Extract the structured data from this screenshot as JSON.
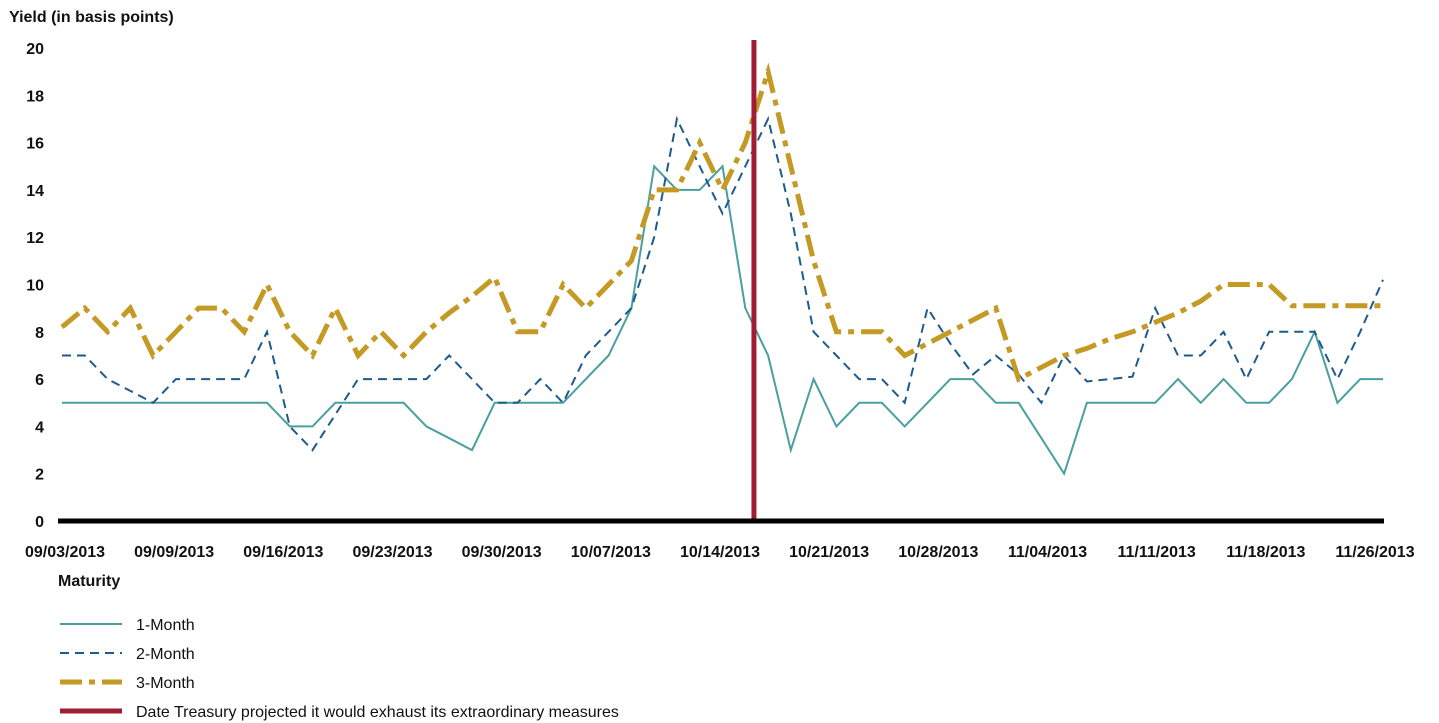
{
  "chart_data": {
    "type": "line",
    "ylabel": "Yield (in basis points)",
    "ylim": [
      0,
      20
    ],
    "yticks": [
      0,
      2,
      4,
      6,
      8,
      10,
      12,
      14,
      16,
      18,
      20
    ],
    "x_start": "09/03/2013",
    "x_tick_labels": [
      "09/03/2013",
      "09/09/2013",
      "09/16/2013",
      "09/23/2013",
      "09/30/2013",
      "10/07/2013",
      "10/14/2013",
      "10/21/2013",
      "10/28/2013",
      "11/04/2013",
      "11/11/2013",
      "11/18/2013",
      "11/26/2013"
    ],
    "legend_title": "Maturity",
    "legend_position": "bottom-left",
    "series": [
      {
        "name": "1-Month",
        "color": "#4a9fa0",
        "style": "solid",
        "values": [
          5,
          5,
          5,
          5,
          5,
          5,
          5,
          5,
          5,
          5,
          4,
          4,
          5,
          5,
          5,
          5,
          4,
          3.5,
          3,
          5,
          5,
          5,
          5,
          6,
          7,
          9,
          15,
          14,
          14,
          15,
          9,
          7,
          3,
          6,
          4,
          5,
          5,
          4,
          5,
          6,
          6,
          5,
          5,
          3.5,
          2,
          5,
          5,
          5,
          5,
          6,
          5,
          6,
          5,
          5,
          6,
          8,
          5,
          6,
          6
        ]
      },
      {
        "name": "2-Month",
        "color": "#1f5a8c",
        "style": "dashed",
        "values": [
          7,
          7,
          6,
          5.5,
          5,
          6,
          6,
          6,
          6,
          8,
          4,
          3,
          4.5,
          6,
          6,
          6,
          6,
          7,
          6,
          5,
          5,
          6,
          5,
          7,
          8,
          9,
          12,
          17,
          15,
          13,
          15,
          17,
          13,
          8,
          7,
          6,
          6,
          5,
          9,
          7.5,
          6.2,
          7,
          6.2,
          5,
          7,
          5.9,
          6,
          6.1,
          9,
          7,
          7,
          8,
          6,
          8,
          8,
          8,
          6,
          8,
          10.2
        ]
      },
      {
        "name": "3-Month",
        "color": "#c49a25",
        "style": "dashdot",
        "values": [
          8.2,
          9,
          8,
          9,
          7,
          8,
          9,
          9,
          8,
          10,
          8,
          7,
          9,
          7,
          8,
          7,
          8,
          8.8,
          9.5,
          10.3,
          8,
          8,
          10,
          9,
          10,
          11,
          14,
          14,
          16,
          14,
          16,
          19,
          15,
          11,
          8,
          8,
          8,
          7,
          7.5,
          8,
          8.5,
          9,
          6,
          6.5,
          7,
          7.3,
          7.7,
          8,
          8.4,
          8.8,
          9.3,
          10,
          10,
          10,
          9.1,
          9.1,
          9.1,
          9.1,
          9.1
        ]
      },
      {
        "name": "Date Treasury projected it would exhaust its extraordinary measures",
        "color": "#a11d33",
        "style": "vertical-marker",
        "x": "10/17/2013"
      }
    ]
  }
}
